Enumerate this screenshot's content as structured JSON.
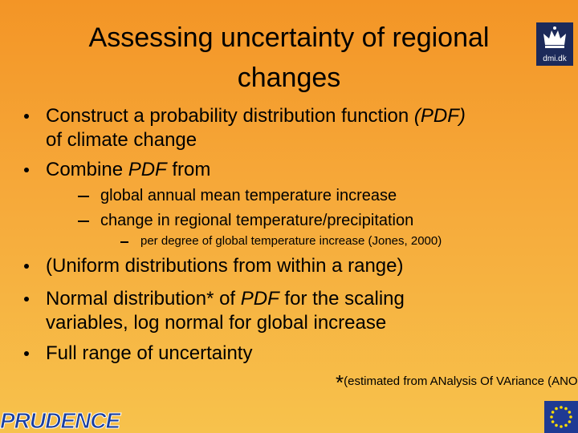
{
  "header": {
    "title": "Assessing uncertainty of regional changes",
    "logo": "dmi.dk"
  },
  "bullets": [
    {
      "level": 1,
      "segments": [
        {
          "text": "Construct a probability distribution function "
        },
        {
          "text": "(PDF)",
          "italic": true
        },
        {
          "text": " of climate change"
        }
      ]
    },
    {
      "level": 1,
      "segments": [
        {
          "text": "Combine "
        },
        {
          "text": "PDF",
          "italic": true
        },
        {
          "text": " from"
        }
      ]
    },
    {
      "level": 2,
      "segments": [
        {
          "text": "global annual mean temperature increase"
        }
      ]
    },
    {
      "level": 2,
      "segments": [
        {
          "text": "change in regional temperature/precipitation"
        }
      ]
    },
    {
      "level": 3,
      "segments": [
        {
          "text": "per degree of global temperature increase (Jones, 2000)"
        }
      ]
    },
    {
      "level": 1,
      "segments": [
        {
          "text": "(Uniform distributions from within a range)"
        }
      ]
    },
    {
      "level": 1,
      "segments": [
        {
          "text": "Normal distribution* of "
        },
        {
          "text": "PDF",
          "italic": true
        },
        {
          "text": " for the scaling variables, log normal for global increase"
        }
      ]
    },
    {
      "level": 1,
      "segments": [
        {
          "text": "Full range of uncertainty"
        }
      ]
    }
  ],
  "footnote": {
    "mark": "*",
    "text": "(estimated from ANalysis Of VAriance (ANOVA) )"
  },
  "footer": {
    "logo": "PRUDENCE"
  }
}
